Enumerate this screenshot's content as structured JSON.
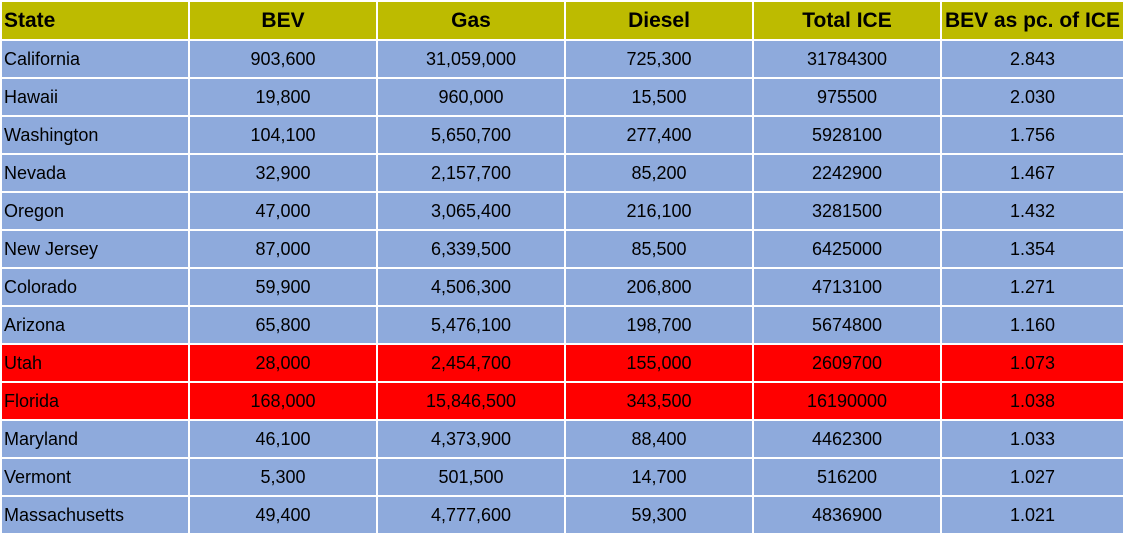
{
  "colors": {
    "header_bg": "#bdbb00",
    "row_bg": "#8eaadc",
    "highlight_bg": "#ff0000",
    "border": "#ffffff",
    "text": "#000000"
  },
  "table": {
    "headers": [
      "State",
      "BEV",
      "Gas",
      "Diesel",
      "Total ICE",
      "BEV as pc. of ICE"
    ],
    "rows": [
      {
        "cells": [
          "California",
          "903,600",
          "31,059,000",
          "725,300",
          "31784300",
          "2.843"
        ],
        "highlight": false
      },
      {
        "cells": [
          "Hawaii",
          "19,800",
          "960,000",
          "15,500",
          "975500",
          "2.030"
        ],
        "highlight": false
      },
      {
        "cells": [
          "Washington",
          "104,100",
          "5,650,700",
          "277,400",
          "5928100",
          "1.756"
        ],
        "highlight": false
      },
      {
        "cells": [
          "Nevada",
          "32,900",
          "2,157,700",
          "85,200",
          "2242900",
          "1.467"
        ],
        "highlight": false
      },
      {
        "cells": [
          "Oregon",
          "47,000",
          "3,065,400",
          "216,100",
          "3281500",
          "1.432"
        ],
        "highlight": false
      },
      {
        "cells": [
          "New Jersey",
          "87,000",
          "6,339,500",
          "85,500",
          "6425000",
          "1.354"
        ],
        "highlight": false
      },
      {
        "cells": [
          "Colorado",
          "59,900",
          "4,506,300",
          "206,800",
          "4713100",
          "1.271"
        ],
        "highlight": false
      },
      {
        "cells": [
          "Arizona",
          "65,800",
          "5,476,100",
          "198,700",
          "5674800",
          "1.160"
        ],
        "highlight": false
      },
      {
        "cells": [
          "Utah",
          "28,000",
          "2,454,700",
          "155,000",
          "2609700",
          "1.073"
        ],
        "highlight": true
      },
      {
        "cells": [
          "Florida",
          "168,000",
          "15,846,500",
          "343,500",
          "16190000",
          "1.038"
        ],
        "highlight": true
      },
      {
        "cells": [
          "Maryland",
          "46,100",
          "4,373,900",
          "88,400",
          "4462300",
          "1.033"
        ],
        "highlight": false
      },
      {
        "cells": [
          "Vermont",
          "5,300",
          "501,500",
          "14,700",
          "516200",
          "1.027"
        ],
        "highlight": false
      },
      {
        "cells": [
          "Massachusetts",
          "49,400",
          "4,777,600",
          "59,300",
          "4836900",
          "1.021"
        ],
        "highlight": false
      }
    ]
  }
}
